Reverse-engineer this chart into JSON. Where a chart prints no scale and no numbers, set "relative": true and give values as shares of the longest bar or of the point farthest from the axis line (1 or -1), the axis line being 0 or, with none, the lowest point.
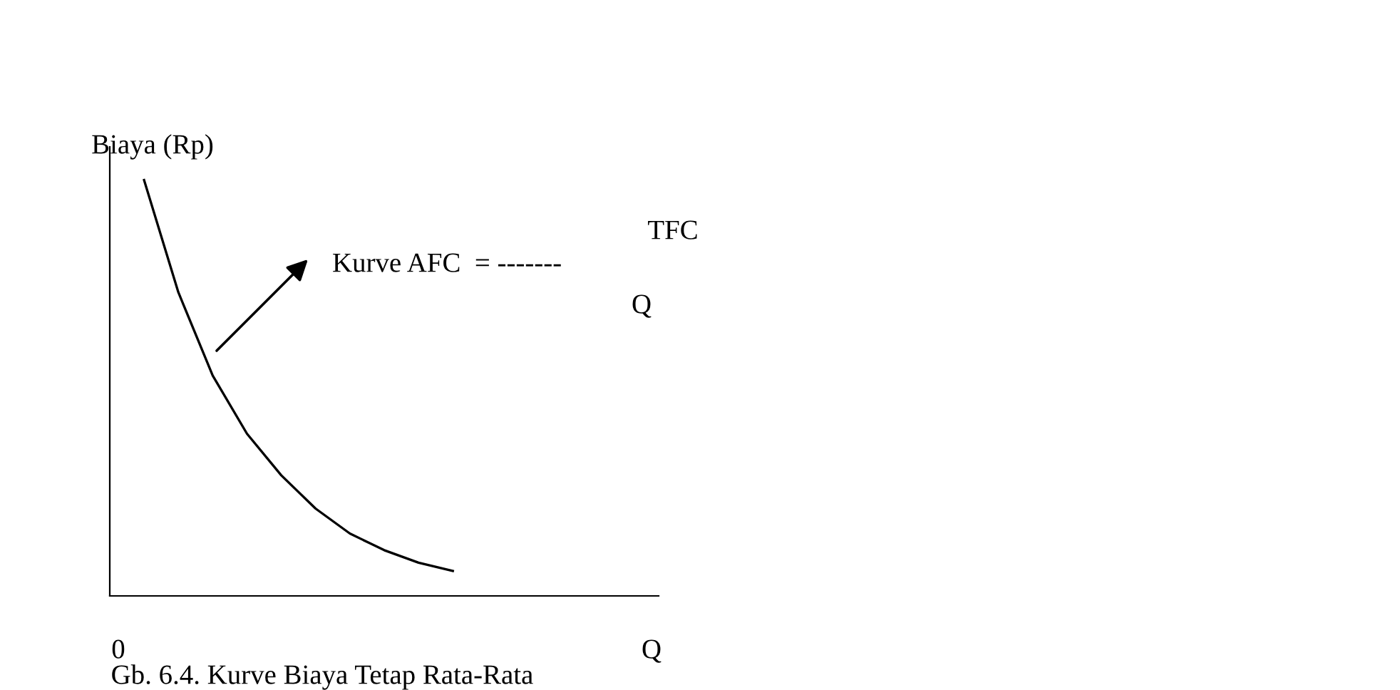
{
  "chart_data": {
    "type": "line",
    "relative": true,
    "title": "Gb. 6.4. Kurve Biaya Tetap Rata-Rata",
    "xlabel": "Q",
    "ylabel": "Biaya (Rp)",
    "categories": [
      null,
      null,
      null,
      null,
      null,
      null,
      null,
      null,
      null,
      null,
      null,
      null,
      null,
      null,
      null,
      null,
      null
    ],
    "series": [
      {
        "color": "#000000",
        "values": [
          null,
          1,
          0.73,
          0.53,
          0.39,
          0.29,
          0.21,
          0.15,
          0.11,
          0.08,
          0.06,
          null,
          null,
          null,
          null,
          null,
          null
        ]
      }
    ],
    "annotations": [
      "0",
      "Kurve AFC  = -------",
      "TFC",
      "Q"
    ],
    "marker": "none",
    "line_style": "solid",
    "grid": false,
    "legend": false
  }
}
